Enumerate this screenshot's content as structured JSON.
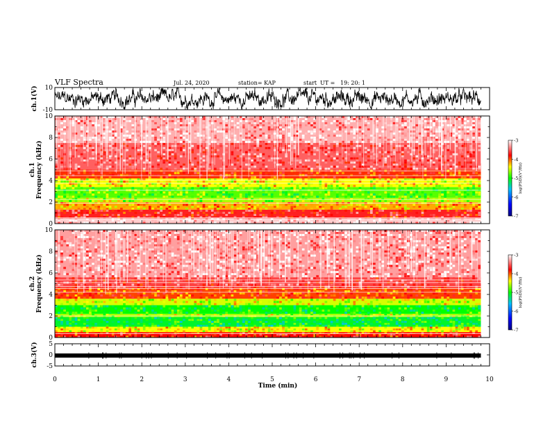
{
  "header": {
    "title": "VLF Spectra",
    "date": "Jul. 24, 2020",
    "station": "station= KAP",
    "start_label": "start",
    "ut_label": "UT =",
    "start_ut": "19: 20: 1"
  },
  "colorbar": {
    "label": "log(PSD)(V²/Hz)",
    "ticks": [
      "-3",
      "-4",
      "-5",
      "-6",
      "-7"
    ],
    "range": [
      -7,
      -3
    ],
    "colors": [
      "#000080",
      "#0000ff",
      "#00c0ff",
      "#00ff00",
      "#ffff00",
      "#ff0000",
      "#ffffff"
    ]
  },
  "chart_data": [
    {
      "type": "line",
      "panel": "ch1-waveform",
      "ylabel": "ch.1(V)",
      "ylim": [
        -10,
        10
      ],
      "yticks": [
        "10",
        "-10"
      ],
      "xlim": [
        0,
        10
      ],
      "trace": "noisy waveform spanning roughly -8 to 8 V"
    },
    {
      "type": "heatmap",
      "panel": "ch1-spectrogram",
      "ylabel_top": "ch.1",
      "ylabel": "Frequency (kHz)",
      "ylim": [
        0,
        10
      ],
      "yticks": [
        "0",
        "2",
        "4",
        "6",
        "8",
        "10"
      ],
      "xlim": [
        0,
        9.8
      ],
      "bands": [
        {
          "f_lo": 0.0,
          "f_hi": 0.5,
          "log_psd": -3.2
        },
        {
          "f_lo": 0.5,
          "f_hi": 1.3,
          "log_psd": -3.7
        },
        {
          "f_lo": 1.3,
          "f_hi": 2.0,
          "log_psd": -4.2
        },
        {
          "f_lo": 2.0,
          "f_hi": 2.4,
          "log_psd": -4.6
        },
        {
          "f_lo": 2.4,
          "f_hi": 3.4,
          "log_psd": -4.8
        },
        {
          "f_lo": 3.4,
          "f_hi": 4.2,
          "log_psd": -4.4
        },
        {
          "f_lo": 4.2,
          "f_hi": 5.0,
          "log_psd": -3.9
        },
        {
          "f_lo": 5.0,
          "f_hi": 7.5,
          "log_psd": -3.5
        },
        {
          "f_lo": 7.5,
          "f_hi": 10.0,
          "log_psd": -3.25
        }
      ],
      "lines_khz": [
        0.25,
        0.4,
        0.55,
        1.9,
        2.25,
        3.1,
        3.75,
        4.05,
        4.45,
        4.9
      ]
    },
    {
      "type": "heatmap",
      "panel": "ch2-spectrogram",
      "ylabel_top": "ch.2",
      "ylabel": "Frequency (kHz)",
      "ylim": [
        0,
        10
      ],
      "yticks": [
        "0",
        "2",
        "4",
        "6",
        "8",
        "10"
      ],
      "xlim": [
        0,
        9.8
      ],
      "bands": [
        {
          "f_lo": 0.0,
          "f_hi": 0.5,
          "log_psd": -3.8
        },
        {
          "f_lo": 0.5,
          "f_hi": 1.0,
          "log_psd": -4.4
        },
        {
          "f_lo": 1.0,
          "f_hi": 1.9,
          "log_psd": -5.1
        },
        {
          "f_lo": 1.9,
          "f_hi": 2.2,
          "log_psd": -4.6
        },
        {
          "f_lo": 2.2,
          "f_hi": 3.0,
          "log_psd": -5.0
        },
        {
          "f_lo": 3.0,
          "f_hi": 3.6,
          "log_psd": -4.5
        },
        {
          "f_lo": 3.6,
          "f_hi": 4.6,
          "log_psd": -3.95
        },
        {
          "f_lo": 4.6,
          "f_hi": 5.6,
          "log_psd": -3.6
        },
        {
          "f_lo": 5.6,
          "f_hi": 10.0,
          "log_psd": -3.3
        }
      ],
      "lines_khz": [
        0.35,
        2.0,
        4.2,
        4.55,
        4.75,
        5.1,
        5.35
      ]
    },
    {
      "type": "line",
      "panel": "ch3-waveform",
      "ylabel": "ch.3(V)",
      "ylim": [
        -5,
        5
      ],
      "yticks": [
        "5",
        "0",
        "-5"
      ],
      "xlim": [
        0,
        9.8
      ],
      "level": -0.3,
      "trace": "thick nearly constant band near 0 V"
    }
  ],
  "xaxis": {
    "label": "Time (min)",
    "ticks": [
      "0",
      "1",
      "2",
      "3",
      "4",
      "5",
      "6",
      "7",
      "8",
      "9",
      "10"
    ],
    "range": [
      0,
      10
    ]
  }
}
